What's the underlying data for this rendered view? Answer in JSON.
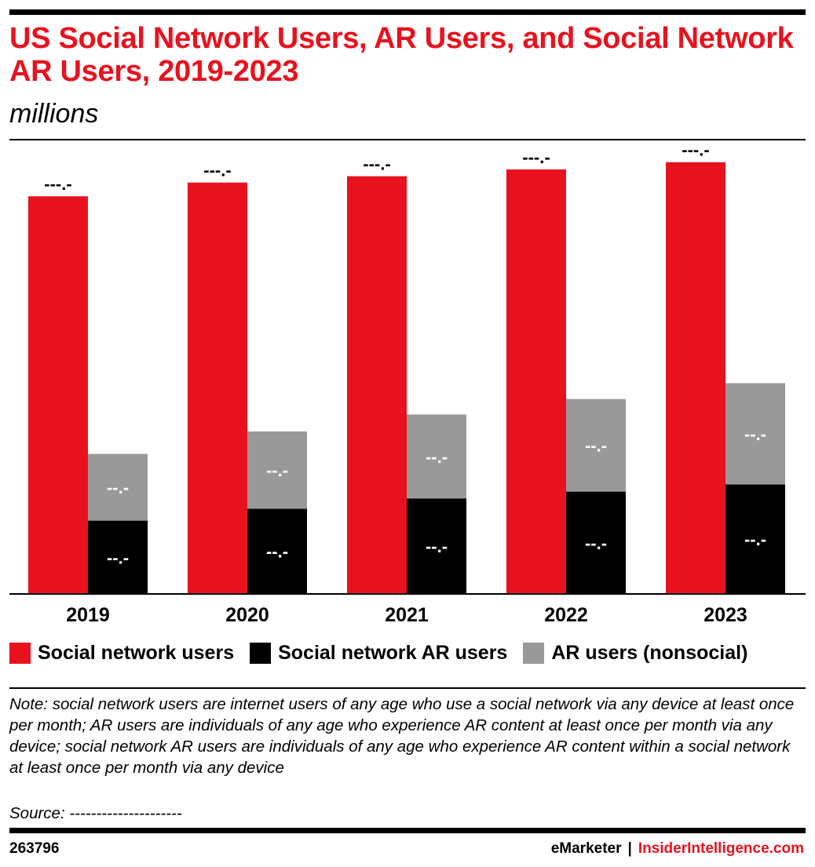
{
  "header": {
    "title": "US Social Network Users, AR Users, and Social Network AR Users, 2019-2023",
    "subtitle": "millions"
  },
  "chart_data": {
    "type": "bar",
    "categories": [
      "2019",
      "2020",
      "2021",
      "2022",
      "2023"
    ],
    "series": [
      {
        "name": "Social network users",
        "values": [
          187.7,
          194.2,
          197.2,
          200.4,
          203.8
        ]
      },
      {
        "name": "Social network AR users",
        "values": [
          34.6,
          40.2,
          45.1,
          48.3,
          51.7
        ]
      },
      {
        "name": "AR users (nonsocial)",
        "values": [
          31.5,
          36.5,
          39.6,
          43.7,
          47.8
        ]
      }
    ],
    "stacked_series": [
      "Social network AR users",
      "AR users (nonsocial)"
    ],
    "data_labels": {
      "Social network users": [
        "---.-",
        "---.-",
        "---.-",
        "---.-",
        "---.-"
      ],
      "Social network AR users": [
        "--.-",
        "--.-",
        "--.-",
        "--.-",
        "--.-"
      ],
      "AR users (nonsocial)": [
        "--.-",
        "--.-",
        "--.-",
        "--.-",
        "--.-"
      ]
    },
    "ylim": [
      0,
      210
    ],
    "grid": false,
    "legend_position": "bottom",
    "colors": {
      "Social network users": "#e8121e",
      "Social network AR users": "#000000",
      "AR users (nonsocial)": "#999999"
    }
  },
  "legend": {
    "items": [
      {
        "label": "Social network users",
        "color": "#e8121e"
      },
      {
        "label": "Social network AR users",
        "color": "#000000"
      },
      {
        "label": "AR users (nonsocial)",
        "color": "#999999"
      }
    ]
  },
  "notes": {
    "note": "Note: social network users are internet users of any age who use a social network via any device at least once per month; AR users are individuals of any age who experience AR content at least once per month via any device; social network AR users are individuals of any age who experience AR content within a social network at least once per month via any device",
    "source": "Source: ---------------------"
  },
  "footer": {
    "chart_id": "263796",
    "brand_primary": "eMarketer",
    "separator": "|",
    "brand_secondary": "InsiderIntelligence.com"
  }
}
